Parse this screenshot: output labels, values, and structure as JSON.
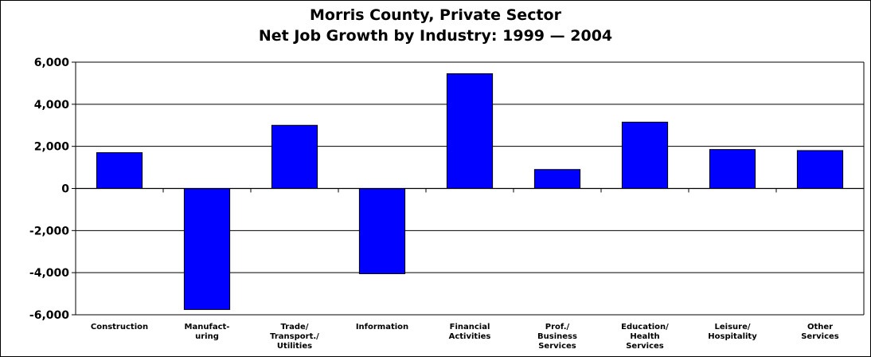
{
  "chart_data": {
    "type": "bar",
    "title_line1": "Morris County, Private Sector",
    "title_line2": "Net Job Growth by Industry: 1999 — 2004",
    "xlabel": "",
    "ylabel": "",
    "ylim": [
      -6000,
      6000
    ],
    "y_ticks": [
      6000,
      4000,
      2000,
      0,
      -2000,
      -4000,
      -6000
    ],
    "y_tick_labels": [
      "6,000",
      "4,000",
      "2,000",
      "0",
      "-2,000",
      "-4,000",
      "-6,000"
    ],
    "grid": true,
    "bar_color": "#0000FF",
    "categories": [
      [
        "Construction"
      ],
      [
        "Manufact-",
        "uring"
      ],
      [
        "Trade/",
        "Transport./",
        "Utilities"
      ],
      [
        "Information"
      ],
      [
        "Financial",
        "Activities"
      ],
      [
        "Prof./",
        "Business",
        "Services"
      ],
      [
        "Education/",
        "Health",
        "Services"
      ],
      [
        "Leisure/",
        "Hospitality"
      ],
      [
        "Other",
        "Services"
      ]
    ],
    "values": [
      1700,
      -5750,
      3000,
      -4050,
      5450,
      900,
      3150,
      1850,
      1800
    ]
  }
}
